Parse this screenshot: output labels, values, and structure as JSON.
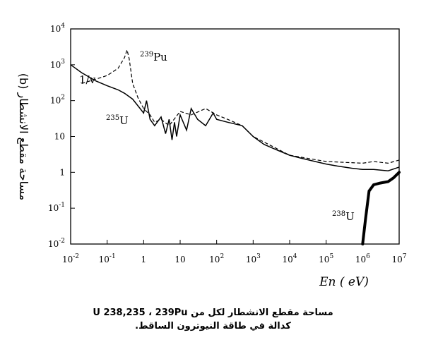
{
  "chart_data": {
    "type": "line",
    "title": "",
    "xlabel": "En ( eV)",
    "ylabel": "مساحة مقطع الانشطار (b)",
    "xscale": "log",
    "yscale": "log",
    "xlim": [
      0.01,
      10000000
    ],
    "ylim": [
      0.01,
      10000
    ],
    "grid": false,
    "x_tick_labels": [
      "10-2",
      "10-1",
      "1",
      "10",
      "102",
      "103",
      "104",
      "105",
      "106",
      "107"
    ],
    "y_tick_labels": [
      "10-2",
      "10-1",
      "1",
      "10",
      "102",
      "103",
      "104"
    ],
    "annotations": [
      "239Pu",
      "235U",
      "238U",
      "1/v"
    ],
    "series": [
      {
        "name": "235U",
        "style": "solid",
        "x": [
          0.01,
          0.02,
          0.05,
          0.1,
          0.2,
          0.3,
          0.5,
          0.8,
          1.0,
          1.2,
          1.5,
          2,
          3,
          4,
          5,
          6,
          7,
          8,
          10,
          15,
          20,
          30,
          50,
          80,
          100,
          200,
          500,
          1000,
          2000,
          5000,
          10000,
          20000,
          50000,
          100000,
          200000,
          500000,
          1000000,
          2000000,
          5000000,
          10000000
        ],
        "y": [
          1000,
          600,
          350,
          260,
          200,
          160,
          110,
          60,
          45,
          100,
          30,
          20,
          35,
          12,
          30,
          8,
          25,
          10,
          40,
          15,
          60,
          30,
          20,
          45,
          30,
          25,
          20,
          10,
          6,
          4,
          3,
          2.5,
          2,
          1.7,
          1.5,
          1.3,
          1.2,
          1.2,
          1.1,
          1.4
        ]
      },
      {
        "name": "239Pu",
        "style": "dashed",
        "x": [
          0.02,
          0.05,
          0.1,
          0.2,
          0.3,
          0.35,
          0.4,
          0.5,
          0.7,
          1.0,
          1.5,
          2,
          3,
          5,
          10,
          20,
          50,
          100,
          200,
          500,
          1000,
          10000,
          100000,
          1000000,
          2000000,
          5000000,
          10000000
        ],
        "y": [
          300,
          400,
          500,
          800,
          1600,
          2600,
          1500,
          300,
          120,
          60,
          40,
          25,
          30,
          20,
          50,
          40,
          60,
          40,
          30,
          20,
          10,
          3,
          2,
          1.8,
          2,
          1.8,
          2.2
        ]
      },
      {
        "name": "238U",
        "style": "thick",
        "x": [
          1000000,
          1200000,
          1500000,
          2000000,
          3000000,
          5000000,
          7000000,
          10000000
        ],
        "y": [
          0.01,
          0.05,
          0.3,
          0.45,
          0.5,
          0.55,
          0.7,
          1.0
        ]
      }
    ]
  },
  "caption": {
    "line1": "مساحة مقطع الانشطار لكل من U 238,235 ، 239Pu",
    "line2": "كدالة في طاقة النيوترون الساقط."
  }
}
